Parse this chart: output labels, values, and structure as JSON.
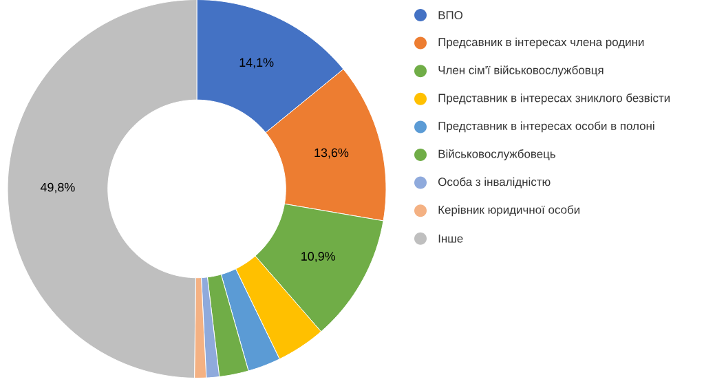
{
  "chart_data": {
    "type": "donut",
    "categories": [
      "ВПО",
      "Предсавник в інтересах члена родини",
      "Член сім'ї військовослужбовця",
      "Представник в інтересах зниклого безвісти",
      "Представник в інтересах особи в полоні",
      "Військовослужбовець",
      "Особа з інвалідністю",
      "Керівник юридичної особи",
      "Інше"
    ],
    "values": [
      14.1,
      13.6,
      10.9,
      4.2,
      2.8,
      2.5,
      1.1,
      1.0,
      49.8
    ],
    "colors": [
      "#4472c4",
      "#ed7d31",
      "#70ad47",
      "#ffc000",
      "#5b9bd5",
      "#70ad47",
      "#8faadc",
      "#f4b183",
      "#bfbfbf"
    ],
    "value_labels": [
      "14,1%",
      "13,6%",
      "10,9%",
      null,
      null,
      null,
      null,
      null,
      "49,8%"
    ],
    "legend": "right"
  }
}
